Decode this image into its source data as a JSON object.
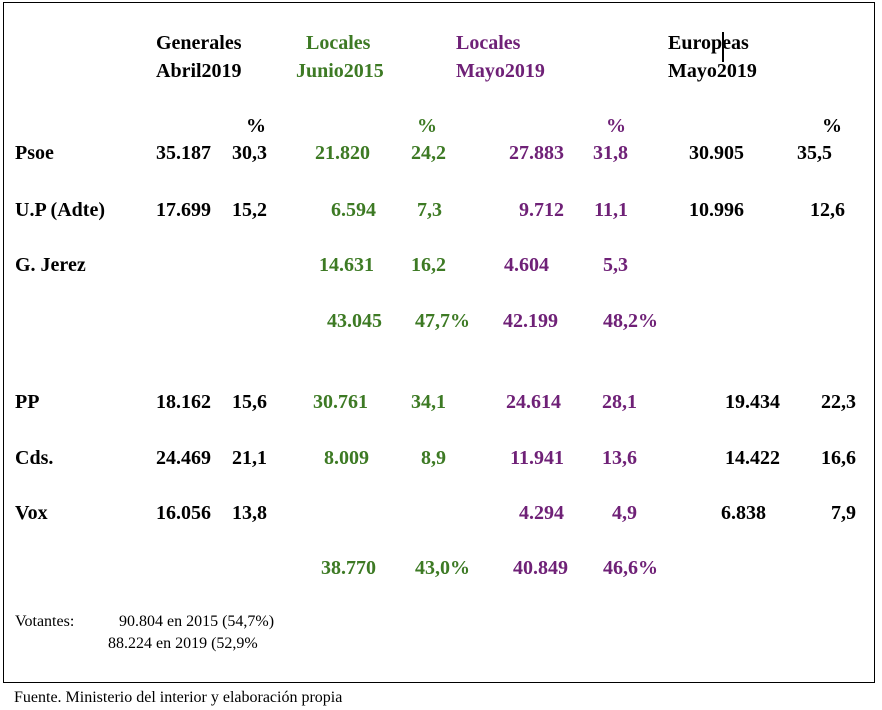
{
  "headers": {
    "generales": [
      "Generales",
      "Abril2019"
    ],
    "locales2015": [
      "Locales",
      "Junio2015"
    ],
    "locales2019": [
      "Locales",
      "Mayo2019"
    ],
    "europeas": [
      "Europeas",
      "Mayo2019"
    ],
    "pct": "%"
  },
  "colors": {
    "locales2015": "#3d7a24",
    "locales2019": "#6f2177",
    "default": "#000000"
  },
  "rows": {
    "psoe": {
      "party": "Psoe",
      "gen": "35.187",
      "gen_pct": "30,3",
      "l15": "21.820",
      "l15_pct": "24,2",
      "l19": "27.883",
      "l19_pct": "31,8",
      "eu": "30.905",
      "eu_pct": "35,5"
    },
    "up": {
      "party": "U.P (Adte)",
      "gen": "17.699",
      "gen_pct": "15,2",
      "l15": "6.594",
      "l15_pct": "7,3",
      "l19": "9.712",
      "l19_pct": "11,1",
      "eu": "10.996",
      "eu_pct": "12,6"
    },
    "gjerez": {
      "party": "G. Jerez",
      "l15": "14.631",
      "l15_pct": "16,2",
      "l19": "4.604",
      "l19_pct": "5,3"
    },
    "left_total": {
      "l15": "43.045",
      "l15_pct": "47,7%",
      "l19": "42.199",
      "l19_pct": "48,2%"
    },
    "pp": {
      "party": "PP",
      "gen": "18.162",
      "gen_pct": "15,6",
      "l15": "30.761",
      "l15_pct": "34,1",
      "l19": "24.614",
      "l19_pct": "28,1",
      "eu": "19.434",
      "eu_pct": "22,3"
    },
    "cds": {
      "party": "Cds.",
      "gen": "24.469",
      "gen_pct": "21,1",
      "l15": "8.009",
      "l15_pct": "8,9",
      "l19": "11.941",
      "l19_pct": "13,6",
      "eu": "14.422",
      "eu_pct": "16,6"
    },
    "vox": {
      "party": "Vox",
      "gen": "16.056",
      "gen_pct": "13,8",
      "l19": "4.294",
      "l19_pct": "4,9",
      "eu": "6.838",
      "eu_pct": "7,9"
    },
    "right_total": {
      "l15": "38.770",
      "l15_pct": "43,0%",
      "l19": "40.849",
      "l19_pct": "46,6%"
    }
  },
  "votantes": {
    "label": "Votantes:",
    "line1": "90.804 en 2015 (54,7%)",
    "line2": "88.224 en 2019 (52,9%"
  },
  "source": "Fuente. Ministerio del interior y elaboración propia"
}
